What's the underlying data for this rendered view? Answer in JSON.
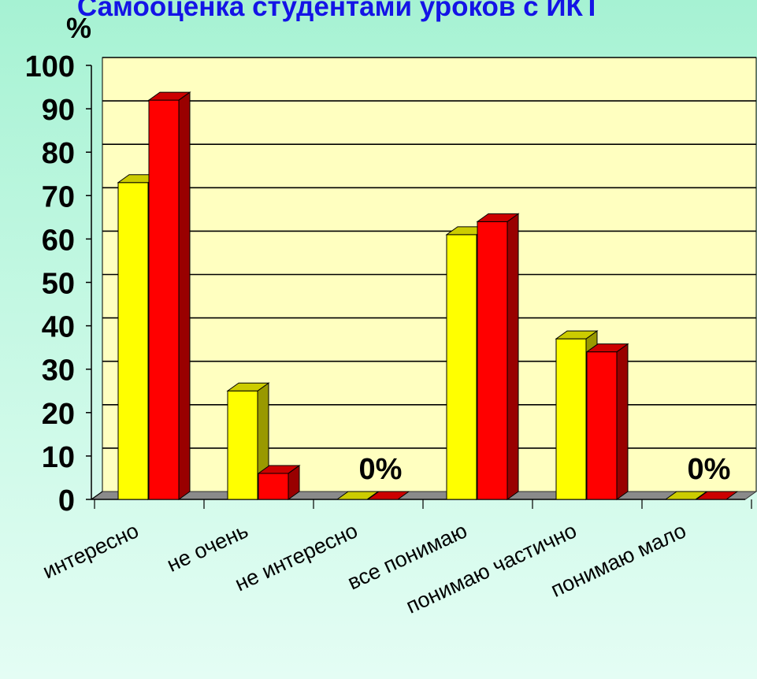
{
  "chart_data": {
    "type": "bar",
    "title": "Самооценка студентами  уроков с ИКТ",
    "ylabel": "%",
    "ylim": [
      0,
      100
    ],
    "yticks": [
      0,
      10,
      20,
      30,
      40,
      50,
      60,
      70,
      80,
      90,
      100
    ],
    "categories": [
      "интересно",
      "не очень",
      "не интересно",
      "все понимаю",
      "понимаю частично",
      "понимаю мало"
    ],
    "series": [
      {
        "color": "#ffff00",
        "values": [
          73,
          25,
          0,
          61,
          37,
          0
        ]
      },
      {
        "color": "#ff0000",
        "values": [
          92,
          6,
          0,
          64,
          34,
          0
        ]
      }
    ],
    "annotations": [
      {
        "category": "не интересно",
        "text": "0%"
      },
      {
        "category": "понимаю мало",
        "text": "0%"
      }
    ],
    "grid": true,
    "legend": "none",
    "style": "3d-columns"
  }
}
